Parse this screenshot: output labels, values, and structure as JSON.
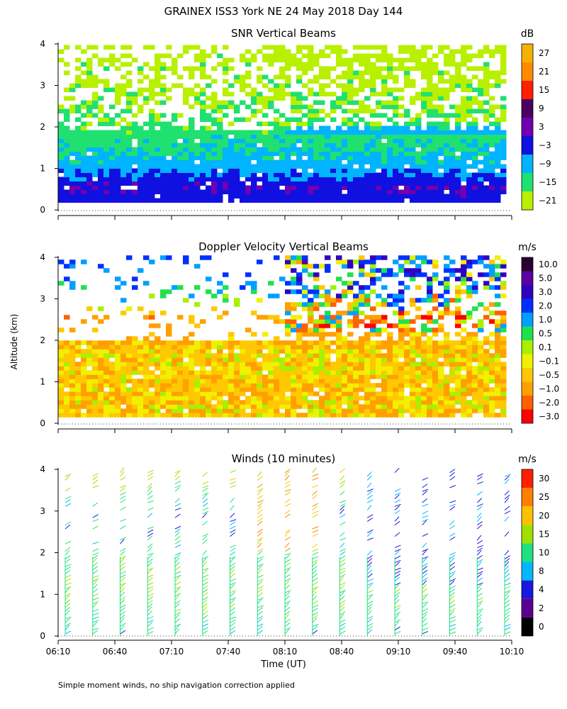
{
  "figure": {
    "title": "GRAINEX ISS3 York NE  24 May 2018 Day 144",
    "shared_ylabel": "Altitude (km)",
    "footnote": "Simple moment winds, no ship navigation correction applied"
  },
  "chart_data": [
    {
      "type": "heatmap",
      "title": "SNR Vertical Beams",
      "colorbar_unit": "dB",
      "colorbar_labels": [
        "27",
        "21",
        "15",
        "9",
        "3",
        "−3",
        "−9",
        "−15",
        "−21"
      ],
      "colorbar_colors": [
        "#f4b200",
        "#ff8a00",
        "#ff2000",
        "#4a0060",
        "#7000b0",
        "#1010e0",
        "#00b4ff",
        "#20e070",
        "#b8f000"
      ],
      "y_ticks": [
        "0",
        "1",
        "2",
        "3",
        "4"
      ],
      "ylim": [
        0,
        4
      ],
      "grid": false,
      "description_levels": {
        "altitude_km": [
          0.25,
          0.5,
          0.75,
          1.0,
          1.25,
          1.5,
          1.75,
          2.25,
          3.0,
          3.75
        ],
        "typical_snr_dB": [
          -3,
          -1,
          -5,
          -9,
          -11,
          -13,
          -15,
          -18,
          -20,
          -21
        ]
      }
    },
    {
      "type": "heatmap",
      "title": "Doppler Velocity Vertical Beams",
      "colorbar_unit": "m/s",
      "colorbar_labels": [
        "10.0",
        "5.0",
        "3.0",
        "2.0",
        "1.0",
        "0.5",
        "0.1",
        "−0.1",
        "−0.5",
        "−1.0",
        "−2.0",
        "−3.0"
      ],
      "colorbar_colors": [
        "#2a0030",
        "#5a00a0",
        "#3000c0",
        "#0030ff",
        "#00a0ff",
        "#20e050",
        "#a8f000",
        "#f0f000",
        "#ffc800",
        "#ffa000",
        "#ff6000",
        "#ff0000"
      ],
      "y_ticks": [
        "0",
        "1",
        "2",
        "3",
        "4"
      ],
      "ylim": [
        0,
        4
      ],
      "grid": false,
      "description_levels": {
        "altitude_km": [
          0.5,
          1.0,
          1.5,
          2.5,
          3.0,
          3.5
        ],
        "typical_velocity_ms": [
          -0.5,
          -0.5,
          -0.4,
          -1.0,
          0.5,
          1.5
        ]
      }
    },
    {
      "type": "scatter",
      "title": "Winds (10 minutes)",
      "colorbar_unit": "m/s",
      "colorbar_labels": [
        "30",
        "25",
        "20",
        "15",
        "10",
        "8",
        "4",
        "2",
        "0"
      ],
      "colorbar_colors": [
        "#ff2000",
        "#ff8000",
        "#ffc000",
        "#a0e000",
        "#20e080",
        "#00b8ff",
        "#1818e0",
        "#5a0090",
        "#000000"
      ],
      "y_ticks": [
        "0",
        "1",
        "2",
        "3",
        "4"
      ],
      "ylim": [
        0,
        4
      ],
      "x_ticks": [
        "06:10",
        "06:40",
        "07:10",
        "07:40",
        "08:10",
        "08:40",
        "09:10",
        "09:40",
        "10:10"
      ],
      "xlabel": "Time (UT)",
      "grid": false,
      "wind_profile_times_min_after_0610": [
        0,
        15,
        30,
        45,
        60,
        75,
        90,
        105,
        120,
        135,
        150,
        165,
        180,
        195,
        210,
        225,
        240
      ],
      "altitude_km": [
        0.0,
        0.5,
        1.0,
        1.5,
        2.0,
        2.5,
        3.0,
        3.5,
        4.0
      ],
      "typical_speed_ms": [
        10,
        13,
        15,
        15,
        12,
        8,
        10,
        15,
        20
      ]
    }
  ]
}
